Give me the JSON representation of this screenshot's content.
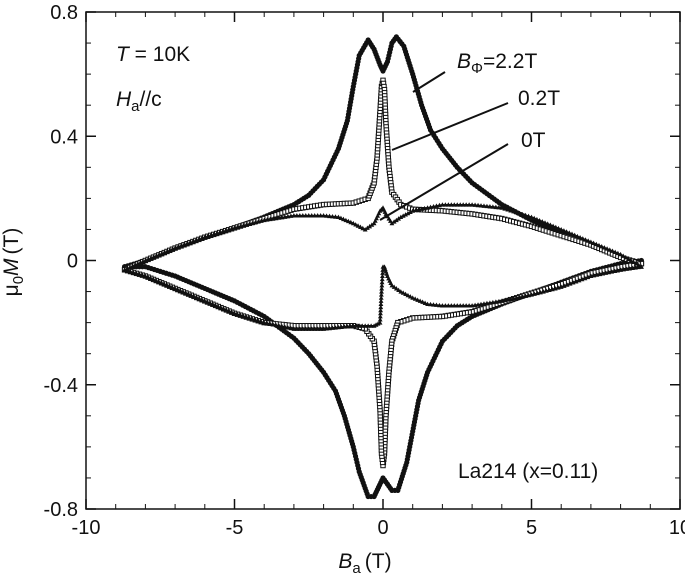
{
  "chart_data": {
    "type": "line",
    "xlabel": {
      "symbol": "B",
      "subscript": "a",
      "unit": "(T)"
    },
    "ylabel": {
      "prefix": "μ",
      "prefix_sub": "0",
      "symbol": "M",
      "unit": "(T)"
    },
    "xlim": [
      -10,
      10
    ],
    "ylim": [
      -0.8,
      0.8
    ],
    "xticks": [
      {
        "value": -10,
        "label": "-10"
      },
      {
        "value": -5,
        "label": "-5"
      },
      {
        "value": 0,
        "label": "0"
      },
      {
        "value": 5,
        "label": "5"
      },
      {
        "value": 10,
        "label": "10"
      }
    ],
    "yticks": [
      {
        "value": -0.8,
        "label": "-0.8"
      },
      {
        "value": -0.4,
        "label": "-0.4"
      },
      {
        "value": 0,
        "label": "0"
      },
      {
        "value": 0.4,
        "label": "0.4"
      },
      {
        "value": 0.8,
        "label": "0.8"
      }
    ],
    "minor_xtick_step": 1,
    "minor_ytick_step": 0.1,
    "grid": false,
    "conditions": {
      "temperature": {
        "symbol": "T",
        "text": " = 10K"
      },
      "field_direction": {
        "symbol": "H",
        "subscript": "a",
        "text": "//c"
      }
    },
    "sample_label": "La214 (x=0.11)",
    "series": [
      {
        "name": "2.2T",
        "label": {
          "symbol": "B",
          "subscript": "Φ",
          "text": "=2.2T"
        },
        "marker": "circle",
        "upper": [
          [
            -8.7,
            -0.02
          ],
          [
            -8,
            0.0
          ],
          [
            -7,
            0.04
          ],
          [
            -6,
            0.075
          ],
          [
            -5,
            0.105
          ],
          [
            -4,
            0.14
          ],
          [
            -3,
            0.18
          ],
          [
            -2.5,
            0.21
          ],
          [
            -2,
            0.26
          ],
          [
            -1.5,
            0.36
          ],
          [
            -1.2,
            0.45
          ],
          [
            -1,
            0.56
          ],
          [
            -0.8,
            0.66
          ],
          [
            -0.5,
            0.71
          ],
          [
            -0.3,
            0.68
          ],
          [
            -0.1,
            0.63
          ],
          [
            0,
            0.61
          ],
          [
            0.15,
            0.64
          ],
          [
            0.3,
            0.7
          ],
          [
            0.45,
            0.72
          ],
          [
            0.7,
            0.69
          ],
          [
            1,
            0.6
          ],
          [
            1.3,
            0.5
          ],
          [
            1.6,
            0.42
          ],
          [
            2,
            0.36
          ],
          [
            2.5,
            0.3
          ],
          [
            3,
            0.25
          ],
          [
            4,
            0.18
          ],
          [
            5,
            0.13
          ],
          [
            6,
            0.09
          ],
          [
            7,
            0.05
          ],
          [
            7.8,
            0.02
          ],
          [
            8.3,
            0.0
          ],
          [
            8.7,
            -0.01
          ]
        ],
        "lower": [
          [
            8.7,
            0.0
          ],
          [
            8,
            -0.01
          ],
          [
            7,
            -0.035
          ],
          [
            6,
            -0.07
          ],
          [
            5,
            -0.105
          ],
          [
            4,
            -0.14
          ],
          [
            3,
            -0.18
          ],
          [
            2.5,
            -0.21
          ],
          [
            2,
            -0.26
          ],
          [
            1.5,
            -0.36
          ],
          [
            1.2,
            -0.45
          ],
          [
            1,
            -0.55
          ],
          [
            0.8,
            -0.65
          ],
          [
            0.5,
            -0.74
          ],
          [
            0.3,
            -0.74
          ],
          [
            0.15,
            -0.72
          ],
          [
            0,
            -0.7
          ],
          [
            -0.15,
            -0.73
          ],
          [
            -0.3,
            -0.76
          ],
          [
            -0.5,
            -0.76
          ],
          [
            -0.8,
            -0.68
          ],
          [
            -1,
            -0.6
          ],
          [
            -1.3,
            -0.5
          ],
          [
            -1.6,
            -0.42
          ],
          [
            -2,
            -0.36
          ],
          [
            -2.5,
            -0.3
          ],
          [
            -3,
            -0.25
          ],
          [
            -4,
            -0.18
          ],
          [
            -5,
            -0.13
          ],
          [
            -6,
            -0.09
          ],
          [
            -7,
            -0.05
          ],
          [
            -8,
            -0.02
          ],
          [
            -8.7,
            -0.02
          ]
        ]
      },
      {
        "name": "0.2T",
        "label": {
          "text": "0.2T"
        },
        "marker": "square",
        "upper": [
          [
            -8.7,
            -0.03
          ],
          [
            -8,
            0.0
          ],
          [
            -7,
            0.04
          ],
          [
            -6,
            0.075
          ],
          [
            -5,
            0.105
          ],
          [
            -4,
            0.135
          ],
          [
            -3,
            0.165
          ],
          [
            -2,
            0.18
          ],
          [
            -1,
            0.185
          ],
          [
            -0.5,
            0.2
          ],
          [
            -0.3,
            0.25
          ],
          [
            -0.2,
            0.33
          ],
          [
            -0.1,
            0.48
          ],
          [
            -0.05,
            0.56
          ],
          [
            0,
            0.58
          ],
          [
            0.05,
            0.55
          ],
          [
            0.1,
            0.44
          ],
          [
            0.2,
            0.3
          ],
          [
            0.3,
            0.22
          ],
          [
            0.6,
            0.18
          ],
          [
            1,
            0.165
          ],
          [
            2,
            0.16
          ],
          [
            3,
            0.15
          ],
          [
            4,
            0.135
          ],
          [
            5,
            0.11
          ],
          [
            6,
            0.08
          ],
          [
            7,
            0.05
          ],
          [
            8,
            0.01
          ],
          [
            8.7,
            -0.01
          ]
        ],
        "lower": [
          [
            8.7,
            -0.01
          ],
          [
            8,
            -0.02
          ],
          [
            7,
            -0.04
          ],
          [
            6,
            -0.075
          ],
          [
            5,
            -0.105
          ],
          [
            4,
            -0.135
          ],
          [
            3,
            -0.165
          ],
          [
            2,
            -0.18
          ],
          [
            1,
            -0.185
          ],
          [
            0.5,
            -0.2
          ],
          [
            0.3,
            -0.26
          ],
          [
            0.2,
            -0.36
          ],
          [
            0.1,
            -0.5
          ],
          [
            0.05,
            -0.62
          ],
          [
            0,
            -0.66
          ],
          [
            -0.05,
            -0.62
          ],
          [
            -0.1,
            -0.48
          ],
          [
            -0.2,
            -0.34
          ],
          [
            -0.3,
            -0.26
          ],
          [
            -0.6,
            -0.22
          ],
          [
            -1,
            -0.21
          ],
          [
            -2,
            -0.21
          ],
          [
            -3,
            -0.21
          ],
          [
            -4,
            -0.2
          ],
          [
            -5,
            -0.17
          ],
          [
            -6,
            -0.13
          ],
          [
            -7,
            -0.09
          ],
          [
            -8,
            -0.05
          ],
          [
            -8.7,
            -0.03
          ]
        ]
      },
      {
        "name": "0T",
        "label": {
          "text": "0T"
        },
        "marker": "triangle",
        "upper": [
          [
            -8.7,
            -0.03
          ],
          [
            -8,
            0.0
          ],
          [
            -7,
            0.04
          ],
          [
            -6,
            0.075
          ],
          [
            -5,
            0.105
          ],
          [
            -4,
            0.13
          ],
          [
            -3,
            0.145
          ],
          [
            -2,
            0.145
          ],
          [
            -1.5,
            0.14
          ],
          [
            -1,
            0.12
          ],
          [
            -0.6,
            0.1
          ],
          [
            -0.3,
            0.12
          ],
          [
            -0.1,
            0.16
          ],
          [
            0,
            0.17
          ],
          [
            0.1,
            0.15
          ],
          [
            0.3,
            0.12
          ],
          [
            0.6,
            0.14
          ],
          [
            1,
            0.16
          ],
          [
            2,
            0.18
          ],
          [
            3,
            0.18
          ],
          [
            4,
            0.17
          ],
          [
            5,
            0.14
          ],
          [
            6,
            0.1
          ],
          [
            7,
            0.06
          ],
          [
            8,
            0.02
          ],
          [
            8.7,
            -0.02
          ]
        ],
        "lower": [
          [
            8.7,
            -0.02
          ],
          [
            8,
            -0.03
          ],
          [
            7,
            -0.05
          ],
          [
            6,
            -0.085
          ],
          [
            5,
            -0.11
          ],
          [
            4,
            -0.13
          ],
          [
            3,
            -0.145
          ],
          [
            2,
            -0.145
          ],
          [
            1.5,
            -0.14
          ],
          [
            1,
            -0.12
          ],
          [
            0.6,
            -0.1
          ],
          [
            0.3,
            -0.08
          ],
          [
            0.15,
            -0.05
          ],
          [
            0.05,
            -0.02
          ],
          [
            0,
            -0.02
          ],
          [
            -0.05,
            -0.1
          ],
          [
            -0.1,
            -0.2
          ],
          [
            -0.3,
            -0.21
          ],
          [
            -1,
            -0.21
          ],
          [
            -2,
            -0.22
          ],
          [
            -3,
            -0.22
          ],
          [
            -4,
            -0.2
          ],
          [
            -5,
            -0.17
          ],
          [
            -6,
            -0.13
          ],
          [
            -7,
            -0.09
          ],
          [
            -8,
            -0.05
          ],
          [
            -8.7,
            -0.03
          ]
        ]
      }
    ]
  }
}
